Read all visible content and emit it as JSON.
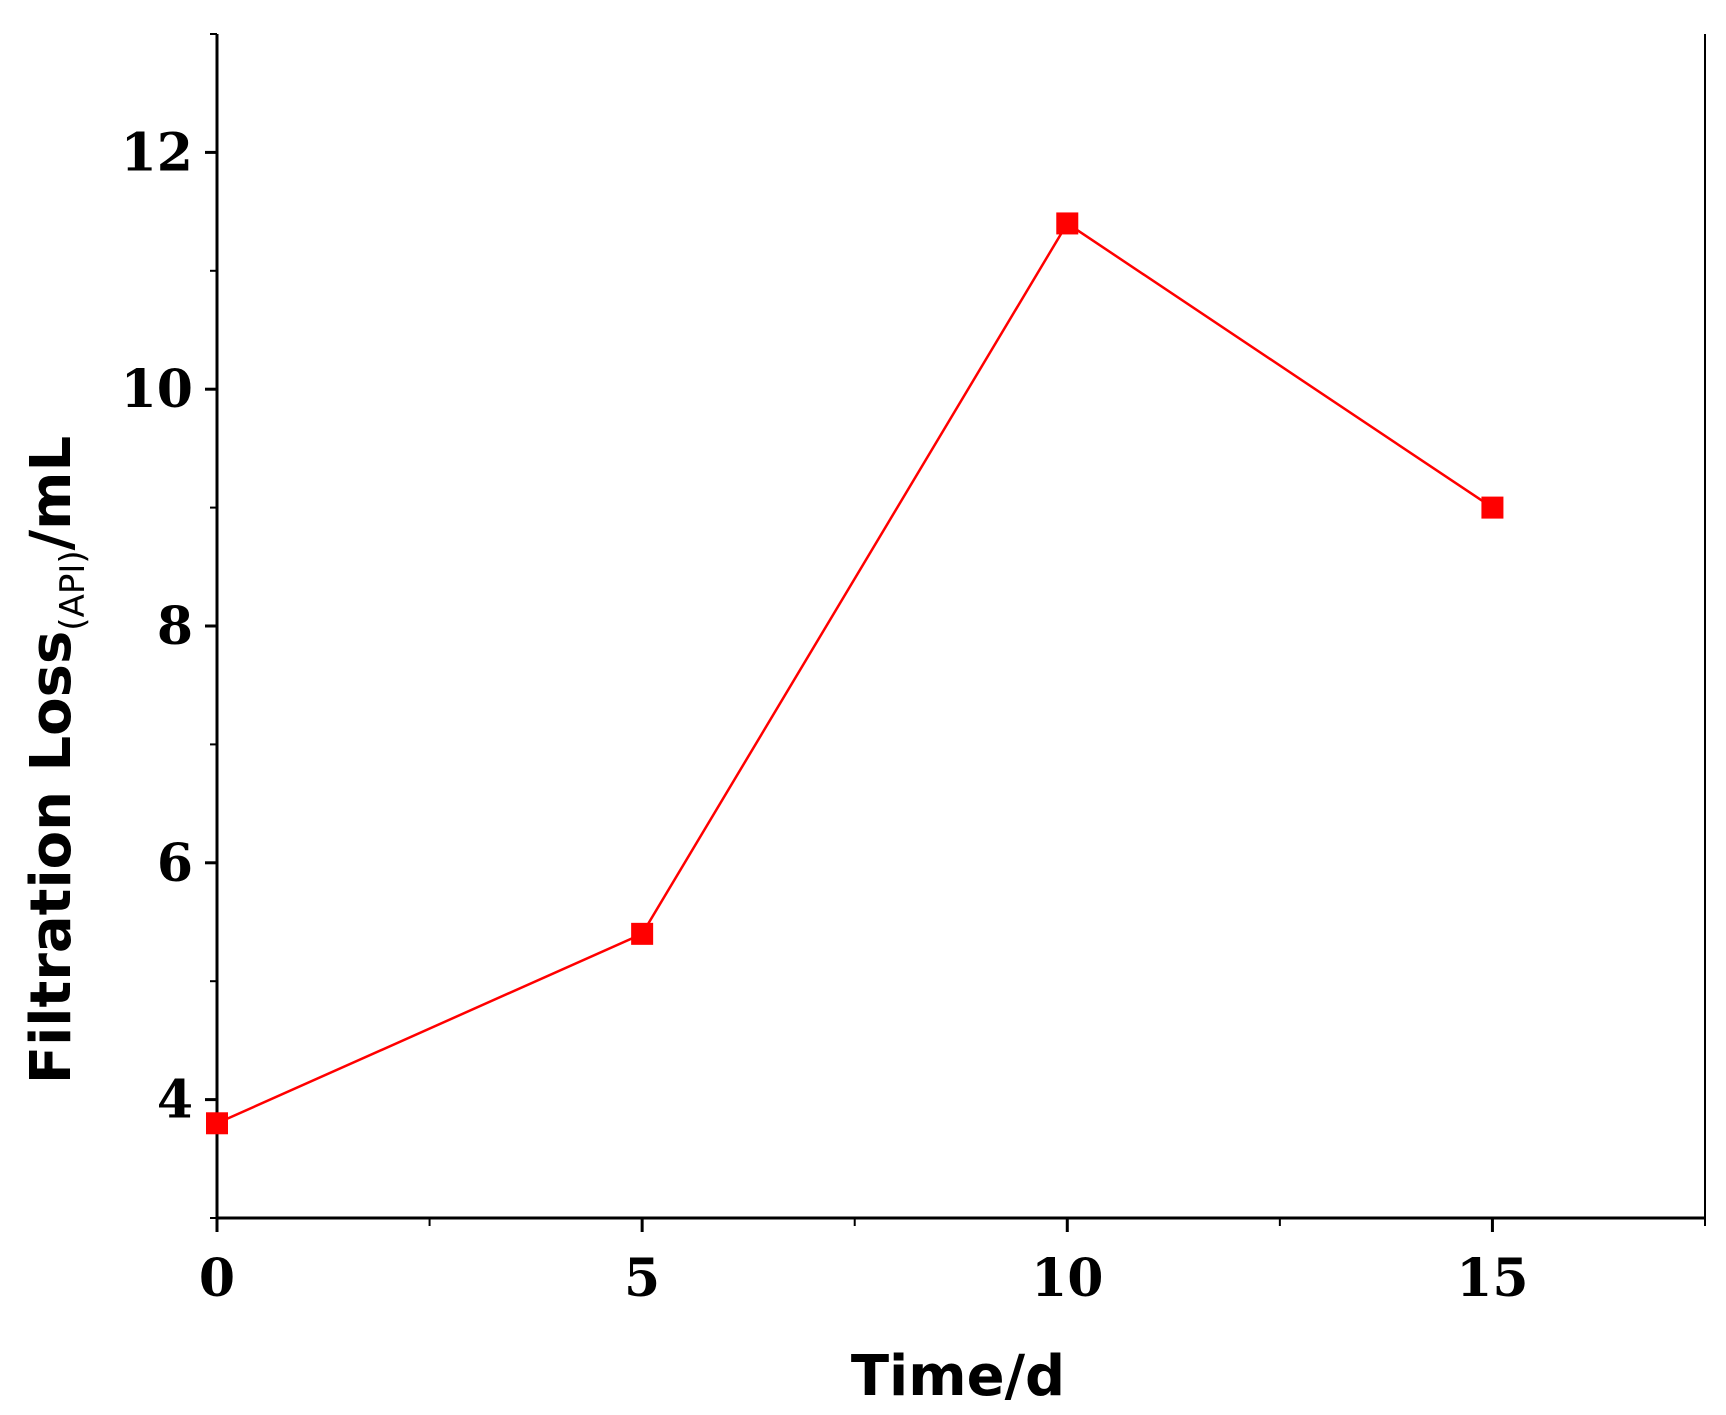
{
  "chart_data": {
    "type": "line",
    "title": "",
    "xlabel": "Time/d",
    "ylabel": {
      "main": "Filtration Loss",
      "subscript": "(API)",
      "unit": "/mL"
    },
    "xlim": [
      0,
      17.5
    ],
    "ylim": [
      3,
      13
    ],
    "x_ticks": [
      {
        "value": 0,
        "label": "0"
      },
      {
        "value": 5,
        "label": "5"
      },
      {
        "value": 10,
        "label": "10"
      },
      {
        "value": 15,
        "label": "15"
      }
    ],
    "x_minor_ticks": [
      2.5,
      7.5,
      12.5,
      17.5
    ],
    "y_ticks": [
      {
        "value": 4,
        "label": "4"
      },
      {
        "value": 6,
        "label": "6"
      },
      {
        "value": 8,
        "label": "8"
      },
      {
        "value": 10,
        "label": "10"
      },
      {
        "value": 12,
        "label": "12"
      }
    ],
    "y_minor_ticks": [
      3,
      5,
      7,
      9,
      11,
      13
    ],
    "grid": false,
    "legend": "none",
    "series": [
      {
        "color": "#ff0000",
        "marker": "square",
        "x": [
          0,
          5,
          10,
          15
        ],
        "y": [
          3.8,
          5.4,
          11.4,
          9.0
        ]
      }
    ]
  }
}
